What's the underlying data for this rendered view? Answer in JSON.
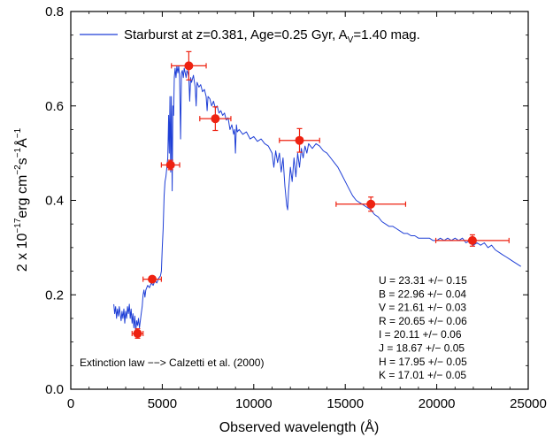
{
  "chart_data": {
    "type": "line",
    "xlabel": "Observed wavelength (Å)",
    "ylabel_parts": {
      "base": "2 x 10",
      "exp": "−17",
      "unit": "erg cm",
      "unit_exp1": "−2",
      "s": "s",
      "s_exp": "−1",
      "ang": "Å",
      "ang_exp": "−1"
    },
    "xlim": [
      0,
      25000
    ],
    "ylim": [
      0.0,
      0.8
    ],
    "x_ticks": [
      0,
      5000,
      10000,
      15000,
      20000,
      25000
    ],
    "x_tick_labels": [
      "0",
      "5000",
      "10000",
      "15000",
      "20000",
      "25000"
    ],
    "y_ticks": [
      0.0,
      0.2,
      0.4,
      0.6,
      0.8
    ],
    "y_tick_labels": [
      "0.0",
      "0.2",
      "0.4",
      "0.6",
      "0.8"
    ],
    "grid": false,
    "legend": {
      "placement": "top-left",
      "label_prefix": "Starburst at z=0.381, Age=0.25 Gyr, A",
      "label_sub": "V",
      "label_suffix": "=1.40 mag.",
      "color": "#1f3fd6"
    },
    "spectrum": {
      "color": "#1f3fd6",
      "points": [
        [
          2350,
          0.18
        ],
        [
          2400,
          0.16
        ],
        [
          2450,
          0.175
        ],
        [
          2500,
          0.15
        ],
        [
          2550,
          0.17
        ],
        [
          2600,
          0.155
        ],
        [
          2650,
          0.175
        ],
        [
          2700,
          0.16
        ],
        [
          2750,
          0.145
        ],
        [
          2800,
          0.165
        ],
        [
          2850,
          0.15
        ],
        [
          2900,
          0.17
        ],
        [
          2950,
          0.14
        ],
        [
          3000,
          0.165
        ],
        [
          3050,
          0.15
        ],
        [
          3100,
          0.175
        ],
        [
          3150,
          0.16
        ],
        [
          3200,
          0.18
        ],
        [
          3250,
          0.15
        ],
        [
          3300,
          0.17
        ],
        [
          3350,
          0.14
        ],
        [
          3400,
          0.16
        ],
        [
          3450,
          0.13
        ],
        [
          3500,
          0.155
        ],
        [
          3550,
          0.12
        ],
        [
          3600,
          0.145
        ],
        [
          3650,
          0.135
        ],
        [
          3700,
          0.15
        ],
        [
          3750,
          0.13
        ],
        [
          3800,
          0.145
        ],
        [
          3850,
          0.16
        ],
        [
          3900,
          0.175
        ],
        [
          3950,
          0.2
        ],
        [
          4000,
          0.21
        ],
        [
          4050,
          0.195
        ],
        [
          4100,
          0.21
        ],
        [
          4200,
          0.22
        ],
        [
          4300,
          0.215
        ],
        [
          4400,
          0.225
        ],
        [
          4500,
          0.22
        ],
        [
          4600,
          0.23
        ],
        [
          4700,
          0.225
        ],
        [
          4800,
          0.235
        ],
        [
          4900,
          0.24
        ],
        [
          4950,
          0.25
        ],
        [
          5000,
          0.3
        ],
        [
          5050,
          0.34
        ],
        [
          5100,
          0.41
        ],
        [
          5150,
          0.44
        ],
        [
          5200,
          0.45
        ],
        [
          5250,
          0.47
        ],
        [
          5300,
          0.49
        ],
        [
          5350,
          0.58
        ],
        [
          5380,
          0.5
        ],
        [
          5420,
          0.62
        ],
        [
          5460,
          0.46
        ],
        [
          5500,
          0.62
        ],
        [
          5540,
          0.42
        ],
        [
          5580,
          0.6
        ],
        [
          5620,
          0.58
        ],
        [
          5660,
          0.66
        ],
        [
          5700,
          0.68
        ],
        [
          5750,
          0.66
        ],
        [
          5800,
          0.685
        ],
        [
          5850,
          0.67
        ],
        [
          5900,
          0.685
        ],
        [
          5950,
          0.66
        ],
        [
          6000,
          0.53
        ],
        [
          6050,
          0.67
        ],
        [
          6100,
          0.675
        ],
        [
          6150,
          0.66
        ],
        [
          6200,
          0.68
        ],
        [
          6250,
          0.67
        ],
        [
          6300,
          0.66
        ],
        [
          6350,
          0.675
        ],
        [
          6400,
          0.67
        ],
        [
          6450,
          0.66
        ],
        [
          6500,
          0.61
        ],
        [
          6550,
          0.66
        ],
        [
          6600,
          0.65
        ],
        [
          6700,
          0.665
        ],
        [
          6800,
          0.64
        ],
        [
          6850,
          0.6
        ],
        [
          6900,
          0.65
        ],
        [
          7000,
          0.64
        ],
        [
          7100,
          0.645
        ],
        [
          7200,
          0.63
        ],
        [
          7300,
          0.635
        ],
        [
          7400,
          0.62
        ],
        [
          7450,
          0.59
        ],
        [
          7500,
          0.62
        ],
        [
          7600,
          0.615
        ],
        [
          7700,
          0.6
        ],
        [
          7800,
          0.61
        ],
        [
          7900,
          0.595
        ],
        [
          8000,
          0.6
        ],
        [
          8100,
          0.585
        ],
        [
          8200,
          0.59
        ],
        [
          8300,
          0.58
        ],
        [
          8400,
          0.585
        ],
        [
          8500,
          0.57
        ],
        [
          8600,
          0.575
        ],
        [
          8700,
          0.55
        ],
        [
          8800,
          0.56
        ],
        [
          8900,
          0.54
        ],
        [
          8950,
          0.55
        ],
        [
          9000,
          0.5
        ],
        [
          9050,
          0.56
        ],
        [
          9100,
          0.545
        ],
        [
          9200,
          0.55
        ],
        [
          9400,
          0.54
        ],
        [
          9600,
          0.545
        ],
        [
          9800,
          0.53
        ],
        [
          10000,
          0.535
        ],
        [
          10200,
          0.525
        ],
        [
          10400,
          0.53
        ],
        [
          10600,
          0.52
        ],
        [
          10800,
          0.515
        ],
        [
          11000,
          0.5
        ],
        [
          11100,
          0.47
        ],
        [
          11200,
          0.505
        ],
        [
          11300,
          0.48
        ],
        [
          11400,
          0.5
        ],
        [
          11500,
          0.46
        ],
        [
          11600,
          0.49
        ],
        [
          11700,
          0.43
        ],
        [
          11800,
          0.39
        ],
        [
          11850,
          0.38
        ],
        [
          11900,
          0.42
        ],
        [
          12000,
          0.47
        ],
        [
          12100,
          0.44
        ],
        [
          12200,
          0.49
        ],
        [
          12300,
          0.45
        ],
        [
          12400,
          0.5
        ],
        [
          12500,
          0.47
        ],
        [
          12600,
          0.51
        ],
        [
          12700,
          0.49
        ],
        [
          12800,
          0.515
        ],
        [
          12900,
          0.5
        ],
        [
          13000,
          0.52
        ],
        [
          13200,
          0.51
        ],
        [
          13400,
          0.52
        ],
        [
          13600,
          0.515
        ],
        [
          13800,
          0.505
        ],
        [
          14000,
          0.5
        ],
        [
          14200,
          0.49
        ],
        [
          14400,
          0.48
        ],
        [
          14600,
          0.47
        ],
        [
          14800,
          0.455
        ],
        [
          15000,
          0.44
        ],
        [
          15200,
          0.425
        ],
        [
          15400,
          0.41
        ],
        [
          15600,
          0.4
        ],
        [
          15800,
          0.395
        ],
        [
          16000,
          0.39
        ],
        [
          16200,
          0.385
        ],
        [
          16400,
          0.38
        ],
        [
          16600,
          0.37
        ],
        [
          16800,
          0.365
        ],
        [
          17000,
          0.355
        ],
        [
          17200,
          0.35
        ],
        [
          17400,
          0.345
        ],
        [
          17600,
          0.345
        ],
        [
          17800,
          0.34
        ],
        [
          18000,
          0.335
        ],
        [
          18200,
          0.33
        ],
        [
          18400,
          0.33
        ],
        [
          18600,
          0.325
        ],
        [
          18800,
          0.325
        ],
        [
          19000,
          0.32
        ],
        [
          19200,
          0.32
        ],
        [
          19400,
          0.32
        ],
        [
          19600,
          0.32
        ],
        [
          19800,
          0.315
        ],
        [
          20000,
          0.315
        ],
        [
          20200,
          0.32
        ],
        [
          20400,
          0.315
        ],
        [
          20600,
          0.32
        ],
        [
          20800,
          0.315
        ],
        [
          21000,
          0.32
        ],
        [
          21200,
          0.315
        ],
        [
          21400,
          0.32
        ],
        [
          21600,
          0.31
        ],
        [
          21800,
          0.315
        ],
        [
          22000,
          0.305
        ],
        [
          22200,
          0.31
        ],
        [
          22400,
          0.305
        ],
        [
          22600,
          0.31
        ],
        [
          22800,
          0.3
        ],
        [
          23000,
          0.305
        ],
        [
          23200,
          0.295
        ],
        [
          23400,
          0.29
        ],
        [
          23600,
          0.285
        ],
        [
          23800,
          0.28
        ],
        [
          24000,
          0.275
        ],
        [
          24200,
          0.27
        ],
        [
          24400,
          0.265
        ],
        [
          24600,
          0.26
        ]
      ]
    },
    "photometry": {
      "color": "#ee2211",
      "points": [
        {
          "x": 3650,
          "xerr": 300,
          "y": 0.118,
          "yerr": 0.01
        },
        {
          "x": 4450,
          "xerr": 500,
          "y": 0.233,
          "yerr": 0.006
        },
        {
          "x": 5450,
          "xerr": 500,
          "y": 0.475,
          "yerr": 0.01
        },
        {
          "x": 6450,
          "xerr": 950,
          "y": 0.685,
          "yerr": 0.03
        },
        {
          "x": 7900,
          "xerr": 850,
          "y": 0.573,
          "yerr": 0.025
        },
        {
          "x": 12500,
          "xerr": 1100,
          "y": 0.527,
          "yerr": 0.025
        },
        {
          "x": 16400,
          "xerr": 1900,
          "y": 0.392,
          "yerr": 0.015
        },
        {
          "x": 21950,
          "xerr": 2000,
          "y": 0.315,
          "yerr": 0.012
        }
      ]
    },
    "photometry_table": [
      "U = 23.31 +/− 0.15",
      "B = 22.96 +/− 0.04",
      "V = 21.61 +/− 0.03",
      "R = 20.65 +/− 0.06",
      "I = 20.11  +/− 0.06",
      "J = 18.67  +/− 0.05",
      "H = 17.95 +/− 0.05",
      "K = 17.01 +/− 0.05"
    ],
    "annotation": "Extinction law −−> Calzetti et al. (2000)"
  }
}
